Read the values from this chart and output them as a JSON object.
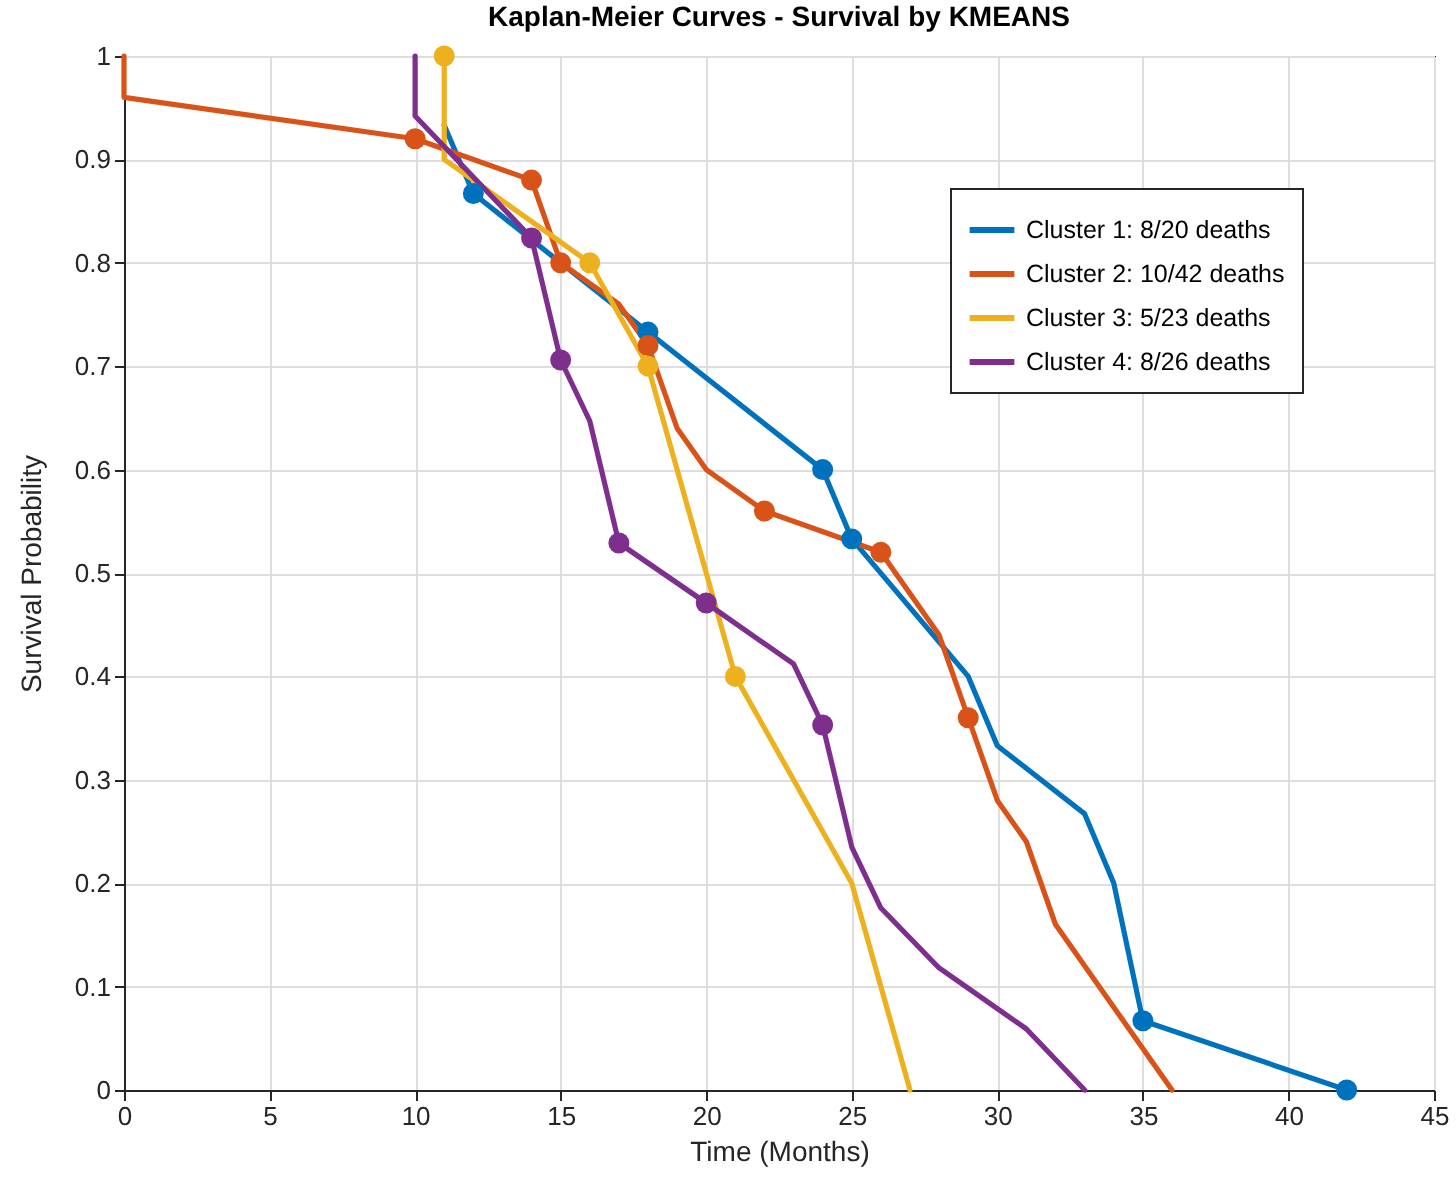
{
  "chart_data": {
    "type": "line",
    "title": "Kaplan-Meier Curves - Survival by KMEANS",
    "xlabel": "Time (Months)",
    "ylabel": "Survival Probability",
    "xlim": [
      0,
      45
    ],
    "xticks": [
      0,
      5,
      10,
      15,
      20,
      25,
      30,
      35,
      40,
      45
    ],
    "ylim": [
      0,
      1
    ],
    "yticks": [
      0,
      0.1,
      0.2,
      0.3,
      0.4,
      0.5,
      0.6,
      0.7,
      0.8,
      0.9,
      1
    ],
    "grid": true,
    "legend": "top right",
    "line_style": "solid",
    "series": [
      {
        "name": "Cluster 1: 8/20 deaths",
        "color": "#0072bd",
        "x": [
          11,
          12,
          18,
          24,
          25,
          29,
          30,
          33,
          34,
          35,
          42
        ],
        "values": [
          0.933,
          0.867,
          0.733,
          0.6,
          0.533,
          0.4,
          0.333,
          0.267,
          0.2,
          0.067,
          0
        ]
      },
      {
        "name": "Cluster 2: 10/42 deaths",
        "color": "#d95319",
        "x": [
          0,
          0,
          10,
          14,
          15,
          17,
          18,
          19,
          20,
          22,
          26,
          28,
          29,
          30,
          31,
          32,
          36
        ],
        "values": [
          1,
          0.96,
          0.92,
          0.88,
          0.8,
          0.76,
          0.72,
          0.64,
          0.6,
          0.56,
          0.52,
          0.44,
          0.36,
          0.28,
          0.24,
          0.16,
          0
        ]
      },
      {
        "name": "Cluster 3: 5/23 deaths",
        "color": "#edb120",
        "x": [
          11,
          11,
          16,
          18,
          21,
          25,
          27
        ],
        "values": [
          1,
          0.9,
          0.8,
          0.7,
          0.4,
          0.2,
          0
        ]
      },
      {
        "name": "Cluster 4: 8/26 deaths",
        "color": "#7e2f8e",
        "x": [
          10,
          10,
          14,
          15,
          16,
          17,
          20,
          23,
          24,
          25,
          26,
          28,
          31,
          33
        ],
        "values": [
          1,
          0.942,
          0.824,
          0.706,
          0.647,
          0.529,
          0.471,
          0.412,
          0.353,
          0.235,
          0.176,
          0.118,
          0.059,
          0
        ]
      },
      {
        "type": "scatter",
        "marker": "circle",
        "color": "#0072bd",
        "x": [
          12,
          18,
          24,
          25,
          35,
          42
        ],
        "values": [
          0.867,
          0.733,
          0.6,
          0.533,
          0.067,
          0
        ]
      },
      {
        "type": "scatter",
        "marker": "circle",
        "color": "#d95319",
        "x": [
          10,
          14,
          15,
          18,
          22,
          26,
          29
        ],
        "values": [
          0.92,
          0.88,
          0.8,
          0.72,
          0.56,
          0.52,
          0.36
        ]
      },
      {
        "type": "scatter",
        "marker": "circle",
        "color": "#edb120",
        "x": [
          11,
          16,
          18,
          21
        ],
        "values": [
          1,
          0.8,
          0.7,
          0.4
        ]
      },
      {
        "type": "scatter",
        "marker": "circle",
        "color": "#7e2f8e",
        "x": [
          14,
          15,
          17,
          20,
          24
        ],
        "values": [
          0.824,
          0.706,
          0.529,
          0.471,
          0.353
        ]
      }
    ]
  }
}
